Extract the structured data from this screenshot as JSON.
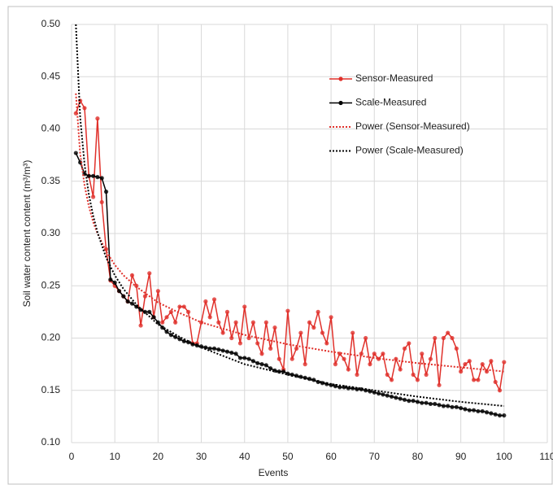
{
  "chart_data": {
    "type": "line",
    "xlabel": "Events",
    "ylabel": "Soil water content content (m³/m³)",
    "x": [
      1,
      2,
      3,
      4,
      5,
      6,
      7,
      8,
      9,
      10,
      11,
      12,
      13,
      14,
      15,
      16,
      17,
      18,
      19,
      20,
      21,
      22,
      23,
      24,
      25,
      26,
      27,
      28,
      29,
      30,
      31,
      32,
      33,
      34,
      35,
      36,
      37,
      38,
      39,
      40,
      41,
      42,
      43,
      44,
      45,
      46,
      47,
      48,
      49,
      50,
      51,
      52,
      53,
      54,
      55,
      56,
      57,
      58,
      59,
      60,
      61,
      62,
      63,
      64,
      65,
      66,
      67,
      68,
      69,
      70,
      71,
      72,
      73,
      74,
      75,
      76,
      77,
      78,
      79,
      80,
      81,
      82,
      83,
      84,
      85,
      86,
      87,
      88,
      89,
      90,
      91,
      92,
      93,
      94,
      95,
      96,
      97,
      98,
      99,
      100
    ],
    "series": [
      {
        "name": "Sensor-Measured",
        "color": "#e0302a",
        "marker": true,
        "values": [
          0.415,
          0.427,
          0.42,
          0.355,
          0.335,
          0.41,
          0.33,
          0.285,
          0.255,
          0.25,
          0.245,
          0.24,
          0.235,
          0.26,
          0.25,
          0.212,
          0.24,
          0.262,
          0.22,
          0.245,
          0.215,
          0.22,
          0.225,
          0.215,
          0.23,
          0.23,
          0.225,
          0.195,
          0.195,
          0.215,
          0.235,
          0.22,
          0.237,
          0.215,
          0.205,
          0.225,
          0.2,
          0.215,
          0.195,
          0.23,
          0.2,
          0.215,
          0.195,
          0.185,
          0.215,
          0.19,
          0.21,
          0.18,
          0.17,
          0.226,
          0.18,
          0.19,
          0.205,
          0.175,
          0.215,
          0.21,
          0.225,
          0.205,
          0.195,
          0.22,
          0.175,
          0.185,
          0.18,
          0.17,
          0.205,
          0.165,
          0.185,
          0.2,
          0.175,
          0.185,
          0.18,
          0.185,
          0.165,
          0.16,
          0.18,
          0.17,
          0.19,
          0.195,
          0.165,
          0.16,
          0.185,
          0.165,
          0.18,
          0.2,
          0.155,
          0.2,
          0.205,
          0.2,
          0.19,
          0.168,
          0.175,
          0.178,
          0.16,
          0.16,
          0.175,
          0.168,
          0.178,
          0.158,
          0.15,
          0.177
        ]
      },
      {
        "name": "Scale-Measured",
        "color": "#000000",
        "marker": true,
        "values": [
          0.377,
          0.368,
          0.357,
          0.355,
          0.355,
          0.354,
          0.353,
          0.34,
          0.256,
          0.253,
          0.245,
          0.24,
          0.235,
          0.233,
          0.23,
          0.227,
          0.225,
          0.225,
          0.22,
          0.215,
          0.21,
          0.206,
          0.203,
          0.201,
          0.199,
          0.197,
          0.196,
          0.194,
          0.193,
          0.192,
          0.191,
          0.19,
          0.19,
          0.189,
          0.188,
          0.187,
          0.186,
          0.185,
          0.181,
          0.181,
          0.18,
          0.178,
          0.176,
          0.175,
          0.174,
          0.171,
          0.169,
          0.168,
          0.168,
          0.166,
          0.165,
          0.164,
          0.163,
          0.162,
          0.161,
          0.16,
          0.158,
          0.157,
          0.156,
          0.155,
          0.154,
          0.153,
          0.153,
          0.152,
          0.152,
          0.151,
          0.151,
          0.15,
          0.149,
          0.148,
          0.147,
          0.146,
          0.145,
          0.144,
          0.143,
          0.142,
          0.141,
          0.14,
          0.14,
          0.139,
          0.138,
          0.138,
          0.137,
          0.137,
          0.136,
          0.135,
          0.135,
          0.134,
          0.134,
          0.133,
          0.132,
          0.131,
          0.131,
          0.13,
          0.13,
          0.129,
          0.128,
          0.127,
          0.126,
          0.126
        ]
      },
      {
        "name": "Power (Sensor-Measured)",
        "color": "#e0302a",
        "dotted": true,
        "x": [
          1,
          2,
          3,
          4,
          5,
          6,
          8,
          10,
          12,
          15,
          20,
          25,
          30,
          40,
          50,
          60,
          70,
          80,
          90,
          100
        ],
        "values": [
          0.434,
          0.376,
          0.346,
          0.326,
          0.311,
          0.3,
          0.283,
          0.27,
          0.26,
          0.249,
          0.234,
          0.224,
          0.215,
          0.203,
          0.194,
          0.187,
          0.181,
          0.176,
          0.172,
          0.168
        ]
      },
      {
        "name": "Power (Scale-Measured)",
        "color": "#000000",
        "dotted": true,
        "x": [
          1,
          2,
          3,
          4,
          5,
          6,
          8,
          10,
          12,
          15,
          20,
          25,
          30,
          40,
          50,
          60,
          70,
          80,
          90,
          100
        ],
        "values": [
          0.5,
          0.411,
          0.366,
          0.337,
          0.317,
          0.301,
          0.277,
          0.26,
          0.247,
          0.232,
          0.213,
          0.201,
          0.191,
          0.175,
          0.165,
          0.156,
          0.15,
          0.144,
          0.139,
          0.135
        ]
      }
    ],
    "xlim": [
      0,
      110
    ],
    "xticks": [
      0,
      10,
      20,
      30,
      40,
      50,
      60,
      70,
      80,
      90,
      100,
      110
    ],
    "ylim": [
      0.1,
      0.5
    ],
    "yticks": [
      {
        "value": 0.1,
        "label": "0.10"
      },
      0.15,
      {
        "value": 0.2,
        "label": "0.20"
      },
      0.25,
      {
        "value": 0.3,
        "label": "0.30"
      },
      0.35,
      {
        "value": 0.4,
        "label": "0.40"
      },
      0.45,
      {
        "value": 0.5,
        "label": "0.50"
      }
    ],
    "grid": true,
    "legend": "upper right"
  }
}
